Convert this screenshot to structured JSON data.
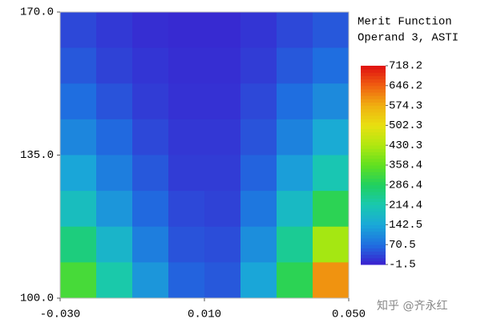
{
  "chart_data": {
    "type": "heatmap",
    "title": [
      "Merit Function",
      "Operand 3, ASTI"
    ],
    "xlim": [
      -0.03,
      0.05
    ],
    "xticks": [
      {
        "value": -0.03,
        "label": "-0.030"
      },
      {
        "value": 0.01,
        "label": "0.010"
      },
      {
        "value": 0.05,
        "label": "0.050"
      }
    ],
    "ylim": [
      100,
      170
    ],
    "yticks": [
      {
        "value": 100,
        "label": "100.0"
      },
      {
        "value": 135,
        "label": "135.0"
      },
      {
        "value": 170,
        "label": "170.0"
      }
    ],
    "zlim": [
      -1.5,
      718.2
    ],
    "zticks": [
      -1.5,
      70.5,
      142.5,
      214.4,
      286.4,
      358.4,
      430.3,
      502.3,
      574.3,
      646.2,
      718.2
    ],
    "colormap": [
      "#3b1fcf",
      "#1f6fe0",
      "#1aa8d8",
      "#19c8b0",
      "#20d060",
      "#60e020",
      "#b0e810",
      "#e8e010",
      "#f0b010",
      "#f06010",
      "#e01010"
    ],
    "z": [
      [
        35,
        22,
        12,
        8,
        8,
        18,
        35,
        50
      ],
      [
        50,
        30,
        18,
        12,
        12,
        25,
        50,
        70
      ],
      [
        70,
        45,
        25,
        15,
        15,
        35,
        70,
        105
      ],
      [
        100,
        65,
        35,
        20,
        20,
        45,
        95,
        150
      ],
      [
        140,
        90,
        50,
        25,
        25,
        60,
        130,
        210
      ],
      [
        190,
        120,
        65,
        35,
        30,
        80,
        180,
        300
      ],
      [
        260,
        170,
        90,
        45,
        40,
        110,
        240,
        420
      ],
      [
        330,
        220,
        120,
        60,
        50,
        140,
        300,
        600
      ]
    ]
  },
  "watermark": "知乎 @齐永红"
}
